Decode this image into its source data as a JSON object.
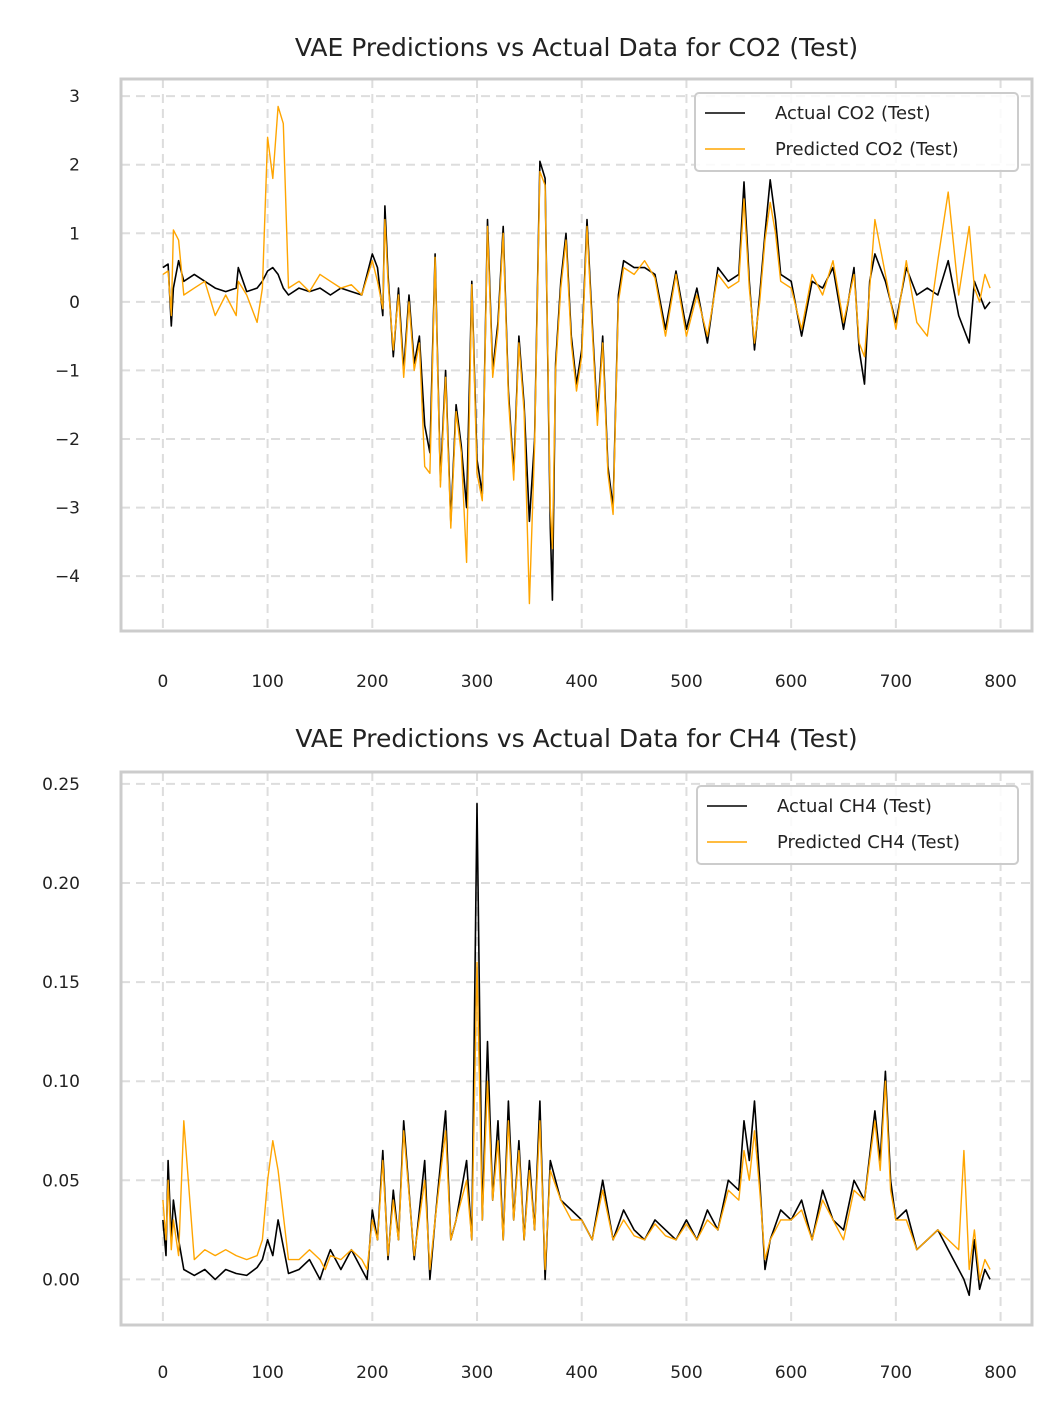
{
  "chart_data": [
    {
      "type": "line",
      "title": "VAE Predictions vs Actual Data for CO2 (Test)",
      "xlabel": "",
      "ylabel": "",
      "xlim": [
        -40,
        830
      ],
      "ylim": [
        -4.8,
        3.25
      ],
      "xticks": [
        0,
        100,
        200,
        300,
        400,
        500,
        600,
        700,
        800
      ],
      "yticks": [
        3,
        2,
        1,
        0,
        -1,
        -2,
        -3,
        -4
      ],
      "xtick_labels": [
        "0",
        "100",
        "200",
        "300",
        "400",
        "500",
        "600",
        "700",
        "800"
      ],
      "ytick_labels": [
        "3",
        "2",
        "1",
        "0",
        "−1",
        "−2",
        "−3",
        "−4"
      ],
      "grid": true,
      "legend_position": "top-right",
      "series": [
        {
          "name": "Actual CO2 (Test)",
          "color": "#000000",
          "x": [
            0,
            5,
            8,
            10,
            15,
            20,
            30,
            40,
            50,
            60,
            70,
            72,
            80,
            90,
            95,
            100,
            105,
            110,
            115,
            120,
            130,
            140,
            150,
            160,
            170,
            180,
            190,
            200,
            205,
            210,
            212,
            215,
            220,
            225,
            230,
            235,
            240,
            245,
            250,
            255,
            260,
            265,
            270,
            275,
            280,
            285,
            290,
            295,
            300,
            305,
            310,
            315,
            320,
            325,
            330,
            335,
            340,
            345,
            350,
            355,
            360,
            365,
            370,
            372,
            375,
            380,
            385,
            390,
            395,
            400,
            405,
            410,
            415,
            420,
            425,
            430,
            435,
            440,
            450,
            460,
            470,
            480,
            490,
            500,
            510,
            520,
            530,
            540,
            550,
            555,
            560,
            565,
            570,
            575,
            580,
            585,
            590,
            600,
            610,
            620,
            630,
            640,
            650,
            660,
            665,
            670,
            675,
            680,
            690,
            700,
            710,
            720,
            730,
            740,
            750,
            760,
            770,
            775,
            780,
            785,
            790
          ],
          "values": [
            0.5,
            0.55,
            -0.35,
            0.2,
            0.6,
            0.3,
            0.4,
            0.3,
            0.2,
            0.15,
            0.2,
            0.5,
            0.15,
            0.2,
            0.3,
            0.45,
            0.5,
            0.4,
            0.2,
            0.1,
            0.2,
            0.15,
            0.2,
            0.1,
            0.2,
            0.15,
            0.1,
            0.7,
            0.5,
            -0.2,
            1.4,
            0.4,
            -0.8,
            0.2,
            -1.0,
            0.1,
            -0.9,
            -0.5,
            -1.8,
            -2.2,
            0.7,
            -2.6,
            -1.0,
            -3.2,
            -1.5,
            -2.1,
            -3.0,
            0.3,
            -2.3,
            -2.8,
            1.2,
            -1.0,
            -0.3,
            1.1,
            -1.3,
            -2.5,
            -0.5,
            -1.5,
            -3.2,
            -2.0,
            2.05,
            1.8,
            -3.3,
            -4.35,
            -0.9,
            0.3,
            1.0,
            -0.5,
            -1.2,
            -0.7,
            1.2,
            -0.3,
            -1.7,
            -0.5,
            -2.4,
            -3.0,
            0.1,
            0.6,
            0.5,
            0.5,
            0.4,
            -0.4,
            0.45,
            -0.4,
            0.2,
            -0.6,
            0.5,
            0.3,
            0.4,
            1.75,
            0.3,
            -0.7,
            0.1,
            1.0,
            1.78,
            1.2,
            0.4,
            0.3,
            -0.5,
            0.3,
            0.2,
            0.5,
            -0.4,
            0.5,
            -0.7,
            -1.2,
            0.3,
            0.7,
            0.3,
            -0.3,
            0.5,
            0.1,
            0.2,
            0.1,
            0.6,
            -0.2,
            -0.6,
            0.3,
            0.1,
            -0.1,
            0.0
          ]
        },
        {
          "name": "Predicted CO2 (Test)",
          "color": "#FFA500",
          "x": [
            0,
            5,
            8,
            10,
            15,
            20,
            30,
            40,
            50,
            60,
            70,
            72,
            80,
            90,
            95,
            100,
            105,
            110,
            115,
            120,
            130,
            140,
            150,
            160,
            170,
            180,
            190,
            200,
            205,
            210,
            212,
            215,
            220,
            225,
            230,
            235,
            240,
            245,
            250,
            255,
            260,
            265,
            270,
            275,
            280,
            285,
            290,
            295,
            300,
            305,
            310,
            315,
            320,
            325,
            330,
            335,
            340,
            345,
            350,
            355,
            360,
            365,
            370,
            372,
            375,
            380,
            385,
            390,
            395,
            400,
            405,
            410,
            415,
            420,
            425,
            430,
            435,
            440,
            450,
            460,
            470,
            480,
            490,
            500,
            510,
            520,
            530,
            540,
            550,
            555,
            560,
            565,
            570,
            575,
            580,
            585,
            590,
            600,
            610,
            620,
            630,
            640,
            650,
            660,
            665,
            670,
            675,
            680,
            690,
            700,
            710,
            720,
            730,
            740,
            750,
            760,
            770,
            775,
            780,
            785,
            790
          ],
          "values": [
            0.4,
            0.45,
            -0.2,
            1.05,
            0.9,
            0.1,
            0.2,
            0.3,
            -0.2,
            0.1,
            -0.2,
            0.3,
            0.1,
            -0.3,
            0.2,
            2.4,
            1.8,
            2.85,
            2.6,
            0.2,
            0.3,
            0.15,
            0.4,
            0.3,
            0.2,
            0.25,
            0.1,
            0.6,
            0.3,
            -0.1,
            1.2,
            0.3,
            -0.7,
            0.1,
            -1.1,
            0.0,
            -1.0,
            -0.6,
            -2.4,
            -2.5,
            0.65,
            -2.7,
            -1.1,
            -3.3,
            -1.6,
            -2.2,
            -3.8,
            0.25,
            -2.5,
            -2.9,
            1.1,
            -1.1,
            -0.4,
            1.0,
            -1.4,
            -2.6,
            -0.6,
            -1.6,
            -4.4,
            -2.1,
            1.9,
            1.7,
            -3.0,
            -3.6,
            -1.0,
            0.2,
            0.9,
            -0.6,
            -1.3,
            -0.8,
            1.1,
            -0.4,
            -1.8,
            -0.6,
            -2.5,
            -3.1,
            0.0,
            0.5,
            0.4,
            0.6,
            0.35,
            -0.5,
            0.4,
            -0.5,
            0.1,
            -0.5,
            0.4,
            0.2,
            0.3,
            1.5,
            0.2,
            -0.6,
            0.0,
            0.9,
            1.45,
            1.0,
            0.3,
            0.2,
            -0.4,
            0.4,
            0.1,
            0.6,
            -0.3,
            0.4,
            -0.6,
            -0.8,
            0.2,
            1.2,
            0.4,
            -0.4,
            0.6,
            -0.3,
            -0.5,
            0.6,
            1.6,
            0.1,
            1.1,
            0.2,
            0.0,
            0.4,
            0.2
          ]
        }
      ]
    },
    {
      "type": "line",
      "title": "VAE Predictions vs Actual Data for CH4 (Test)",
      "xlabel": "",
      "ylabel": "",
      "xlim": [
        -40,
        830
      ],
      "ylim": [
        -0.023,
        0.256
      ],
      "xticks": [
        0,
        100,
        200,
        300,
        400,
        500,
        600,
        700,
        800
      ],
      "yticks": [
        0.25,
        0.2,
        0.15,
        0.1,
        0.05,
        0.0
      ],
      "xtick_labels": [
        "0",
        "100",
        "200",
        "300",
        "400",
        "500",
        "600",
        "700",
        "800"
      ],
      "ytick_labels": [
        "0.25",
        "0.20",
        "0.15",
        "0.10",
        "0.05",
        "0.00"
      ],
      "grid": true,
      "legend_position": "top-right",
      "series": [
        {
          "name": "Actual CH4 (Test)",
          "color": "#000000",
          "x": [
            0,
            3,
            5,
            8,
            10,
            15,
            20,
            30,
            40,
            50,
            60,
            70,
            80,
            90,
            95,
            100,
            105,
            110,
            120,
            130,
            140,
            150,
            155,
            160,
            170,
            180,
            190,
            195,
            200,
            205,
            210,
            215,
            220,
            225,
            230,
            240,
            250,
            255,
            260,
            270,
            275,
            280,
            290,
            295,
            300,
            305,
            310,
            315,
            320,
            325,
            330,
            335,
            340,
            345,
            350,
            355,
            360,
            365,
            370,
            380,
            390,
            400,
            410,
            420,
            430,
            440,
            450,
            460,
            470,
            480,
            490,
            500,
            510,
            520,
            530,
            540,
            550,
            555,
            560,
            565,
            570,
            575,
            580,
            590,
            600,
            610,
            620,
            630,
            640,
            650,
            660,
            670,
            680,
            685,
            690,
            695,
            700,
            710,
            720,
            730,
            740,
            750,
            760,
            765,
            770,
            775,
            780,
            785,
            790
          ],
          "values": [
            0.03,
            0.012,
            0.06,
            0.02,
            0.04,
            0.02,
            0.005,
            0.002,
            0.005,
            0.0,
            0.005,
            0.003,
            0.002,
            0.006,
            0.01,
            0.02,
            0.012,
            0.03,
            0.003,
            0.005,
            0.01,
            0.0,
            0.008,
            0.015,
            0.005,
            0.015,
            0.005,
            0.0,
            0.035,
            0.02,
            0.065,
            0.01,
            0.045,
            0.02,
            0.08,
            0.01,
            0.06,
            0.0,
            0.03,
            0.085,
            0.02,
            0.03,
            0.06,
            0.02,
            0.24,
            0.03,
            0.12,
            0.04,
            0.08,
            0.02,
            0.09,
            0.03,
            0.07,
            0.02,
            0.06,
            0.025,
            0.09,
            0.0,
            0.06,
            0.04,
            0.035,
            0.03,
            0.02,
            0.05,
            0.02,
            0.035,
            0.025,
            0.02,
            0.03,
            0.025,
            0.02,
            0.03,
            0.02,
            0.035,
            0.025,
            0.05,
            0.045,
            0.08,
            0.06,
            0.09,
            0.05,
            0.005,
            0.02,
            0.035,
            0.03,
            0.04,
            0.02,
            0.045,
            0.03,
            0.025,
            0.05,
            0.04,
            0.085,
            0.06,
            0.105,
            0.05,
            0.03,
            0.035,
            0.015,
            0.02,
            0.025,
            0.015,
            0.005,
            0.0,
            -0.008,
            0.02,
            -0.005,
            0.005,
            0.0
          ]
        },
        {
          "name": "Predicted CH4 (Test)",
          "color": "#FFA500",
          "x": [
            0,
            3,
            5,
            8,
            10,
            15,
            20,
            30,
            40,
            50,
            60,
            70,
            80,
            90,
            95,
            100,
            105,
            110,
            120,
            130,
            140,
            150,
            155,
            160,
            170,
            180,
            190,
            195,
            200,
            205,
            210,
            215,
            220,
            225,
            230,
            240,
            250,
            255,
            260,
            270,
            275,
            280,
            290,
            295,
            300,
            305,
            310,
            315,
            320,
            325,
            330,
            335,
            340,
            345,
            350,
            355,
            360,
            365,
            370,
            380,
            390,
            400,
            410,
            420,
            430,
            440,
            450,
            460,
            470,
            480,
            490,
            500,
            510,
            520,
            530,
            540,
            550,
            555,
            560,
            565,
            570,
            575,
            580,
            590,
            600,
            610,
            620,
            630,
            640,
            650,
            660,
            670,
            680,
            685,
            690,
            695,
            700,
            710,
            720,
            730,
            740,
            750,
            760,
            765,
            770,
            775,
            780,
            785,
            790
          ],
          "values": [
            0.04,
            0.02,
            0.05,
            0.015,
            0.03,
            0.012,
            0.08,
            0.01,
            0.015,
            0.012,
            0.015,
            0.012,
            0.01,
            0.012,
            0.02,
            0.05,
            0.07,
            0.055,
            0.01,
            0.01,
            0.015,
            0.01,
            0.005,
            0.012,
            0.01,
            0.015,
            0.01,
            0.005,
            0.03,
            0.02,
            0.06,
            0.012,
            0.04,
            0.02,
            0.075,
            0.012,
            0.05,
            0.005,
            0.03,
            0.075,
            0.02,
            0.03,
            0.05,
            0.02,
            0.16,
            0.03,
            0.1,
            0.04,
            0.07,
            0.02,
            0.08,
            0.03,
            0.065,
            0.02,
            0.055,
            0.025,
            0.08,
            0.005,
            0.055,
            0.04,
            0.03,
            0.03,
            0.02,
            0.045,
            0.02,
            0.03,
            0.022,
            0.02,
            0.028,
            0.022,
            0.02,
            0.028,
            0.02,
            0.03,
            0.025,
            0.045,
            0.04,
            0.065,
            0.05,
            0.075,
            0.045,
            0.01,
            0.02,
            0.03,
            0.03,
            0.035,
            0.02,
            0.04,
            0.03,
            0.02,
            0.045,
            0.04,
            0.08,
            0.055,
            0.1,
            0.045,
            0.03,
            0.03,
            0.015,
            0.02,
            0.025,
            0.02,
            0.015,
            0.065,
            0.005,
            0.025,
            0.0,
            0.01,
            0.005
          ]
        }
      ]
    }
  ]
}
